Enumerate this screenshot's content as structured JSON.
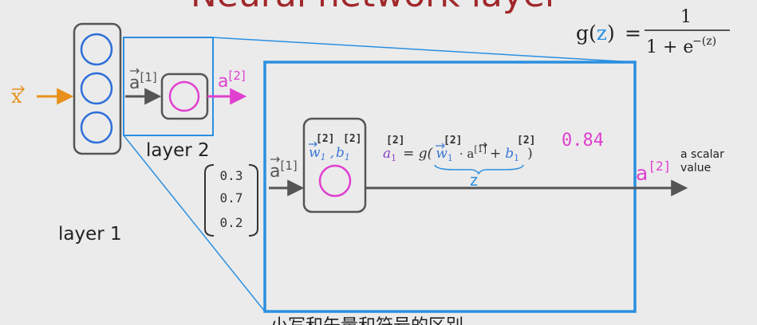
{
  "title": "Neural network layer",
  "sigmoid": {
    "lhs": "g(",
    "z": "z",
    "close": ")",
    "equals": "=",
    "numerator": "1",
    "denominator": "1 + e",
    "exponent": "−(z)"
  },
  "input_label": "x",
  "layer1_label": "layer 1",
  "layer2_label": "layer 2",
  "a1_small": "a",
  "a1_small_sup": "[1]",
  "a2_small": "a",
  "a2_small_sup": "[2]",
  "vector": [
    "0.3",
    "0.7",
    "0.2"
  ],
  "a1_big": "a",
  "a1_big_sup": "[1]",
  "neuron": {
    "sup_w": "[2]",
    "sup_b": "[2]",
    "w": "w",
    "w_sub": "1",
    "comma": ",",
    "b": "b",
    "b_sub": "1"
  },
  "formula": {
    "sup_a": "[2]",
    "a": "a",
    "a_sub": "1",
    "eq": "= g(",
    "sup_w": "[2]",
    "w": "w",
    "w_sub": "1",
    "dot": "· a",
    "dot_sup": "[1]",
    "plus": "+",
    "sup_b": "[2]",
    "b": "b",
    "b_sub": "1",
    "close": ")",
    "z_label": "z"
  },
  "output_value": "0.84",
  "output_a": "a",
  "output_sup": "[2]",
  "scalar_note": [
    "a scalar",
    "value"
  ],
  "bottom_caption": "小写和矢量和符号的区别",
  "colors": {
    "blue": "#2b8fe0",
    "magenta": "#e040d0",
    "orange": "#e8901c",
    "title_red": "#a0282a",
    "dark": "#333333",
    "w_blue": "#3a78d8"
  }
}
